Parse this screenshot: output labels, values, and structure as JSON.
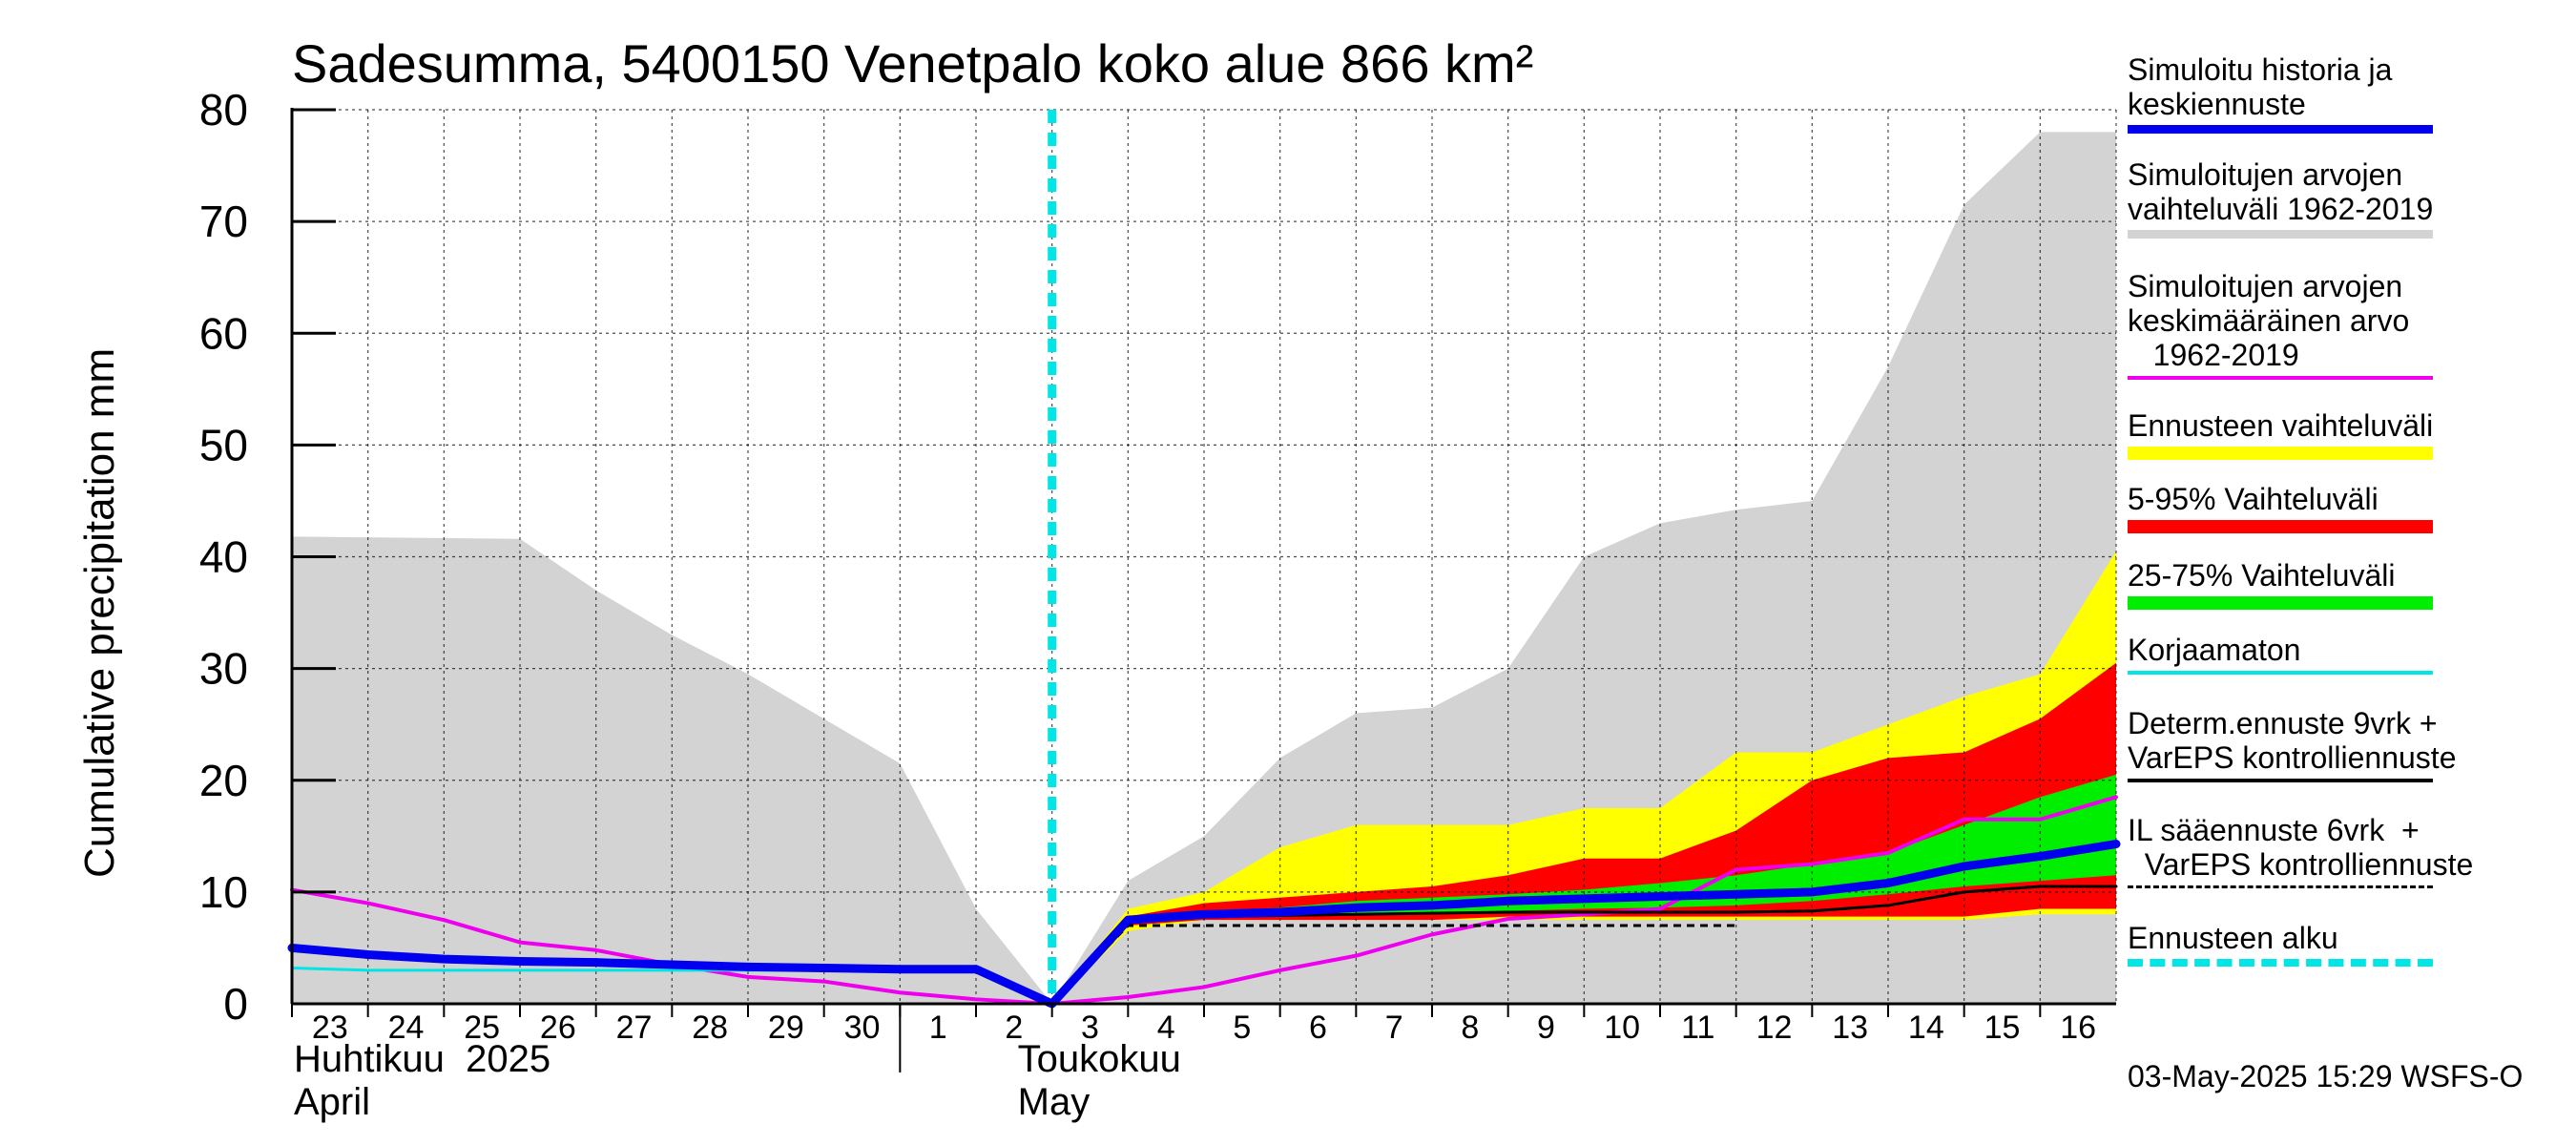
{
  "chart_data": {
    "type": "area",
    "title": "Sadesumma, 5400150 Venetpalo koko alue 866 km²",
    "ylabel": "Cumulative precipitation   mm",
    "ylim": [
      0,
      80
    ],
    "yticks": [
      0,
      10,
      20,
      30,
      40,
      50,
      60,
      70,
      80
    ],
    "x_dates": [
      "2025-04-23",
      "2025-04-24",
      "2025-04-25",
      "2025-04-26",
      "2025-04-27",
      "2025-04-28",
      "2025-04-29",
      "2025-04-30",
      "2025-05-01",
      "2025-05-02",
      "2025-05-03",
      "2025-05-04",
      "2025-05-05",
      "2025-05-06",
      "2025-05-07",
      "2025-05-08",
      "2025-05-09",
      "2025-05-10",
      "2025-05-11",
      "2025-05-12",
      "2025-05-13",
      "2025-05-14",
      "2025-05-15",
      "2025-05-16",
      "2025-05-17"
    ],
    "x_tick_labels": [
      "23",
      "24",
      "25",
      "26",
      "27",
      "28",
      "29",
      "30",
      "1",
      "2",
      "3",
      "4",
      "5",
      "6",
      "7",
      "8",
      "9",
      "10",
      "11",
      "12",
      "13",
      "14",
      "15",
      "16"
    ],
    "month_labels": [
      {
        "text": "Huhtikuu  2025\nApril",
        "date": "2025-04-23"
      },
      {
        "text": "Toukokuu\nMay",
        "date": "2025-05-03"
      }
    ],
    "forecast_start": "2025-05-03",
    "series": [
      {
        "name": "Simuloitujen arvojen vaihteluväli 1962-2019",
        "style": "band",
        "color": "#d3d3d3",
        "x": [
          "2025-04-23",
          "2025-04-26",
          "2025-04-27",
          "2025-04-28",
          "2025-04-29",
          "2025-04-30",
          "2025-05-01",
          "2025-05-02",
          "2025-05-03",
          "2025-05-04",
          "2025-05-05",
          "2025-05-06",
          "2025-05-07",
          "2025-05-08",
          "2025-05-09",
          "2025-05-10",
          "2025-05-11",
          "2025-05-12",
          "2025-05-13",
          "2025-05-14",
          "2025-05-15",
          "2025-05-16",
          "2025-05-17"
        ],
        "upper": [
          41.8,
          41.6,
          37,
          33,
          29.5,
          25.5,
          21.5,
          8.5,
          0,
          11,
          15,
          22,
          26,
          26.5,
          30,
          40,
          43,
          44.2,
          45,
          57,
          71.5,
          78,
          78
        ],
        "lower": [
          0,
          0,
          0,
          0,
          0,
          0,
          0,
          0,
          0,
          0,
          0,
          0,
          0,
          0,
          0,
          0,
          0,
          0,
          0,
          0,
          0,
          0,
          0
        ]
      },
      {
        "name": "Ennusteen vaihteluväli",
        "style": "band",
        "color": "#ffff00",
        "x": [
          "2025-05-03",
          "2025-05-04",
          "2025-05-05",
          "2025-05-06",
          "2025-05-07",
          "2025-05-08",
          "2025-05-09",
          "2025-05-10",
          "2025-05-11",
          "2025-05-12",
          "2025-05-13",
          "2025-05-14",
          "2025-05-15",
          "2025-05-16",
          "2025-05-17"
        ],
        "upper": [
          0,
          8.5,
          10,
          14,
          16,
          16,
          16,
          17.5,
          17.5,
          22.5,
          22.5,
          25,
          27.5,
          29.5,
          40.5
        ],
        "lower": [
          0,
          6.5,
          7.5,
          7.5,
          7.5,
          7.5,
          7.5,
          7.5,
          7.5,
          7.5,
          7.5,
          7.5,
          7.5,
          8,
          8
        ]
      },
      {
        "name": "5-95% Vaihteluväli",
        "style": "band",
        "color": "#ff0000",
        "x": [
          "2025-05-03",
          "2025-05-04",
          "2025-05-05",
          "2025-05-06",
          "2025-05-07",
          "2025-05-08",
          "2025-05-09",
          "2025-05-10",
          "2025-05-11",
          "2025-05-12",
          "2025-05-13",
          "2025-05-14",
          "2025-05-15",
          "2025-05-16",
          "2025-05-17"
        ],
        "upper": [
          0,
          7.8,
          9,
          9.5,
          10,
          10.5,
          11.5,
          13,
          13,
          15.5,
          20,
          22,
          22.5,
          25.5,
          30.5
        ],
        "lower": [
          0,
          7,
          7.5,
          7.5,
          7.5,
          7.5,
          7.8,
          7.8,
          7.8,
          7.8,
          7.8,
          7.8,
          7.8,
          8.5,
          8.5
        ]
      },
      {
        "name": "25-75% Vaihteluväli",
        "style": "band",
        "color": "#00ee00",
        "x": [
          "2025-05-03",
          "2025-05-04",
          "2025-05-05",
          "2025-05-06",
          "2025-05-07",
          "2025-05-08",
          "2025-05-09",
          "2025-05-10",
          "2025-05-11",
          "2025-05-12",
          "2025-05-13",
          "2025-05-14",
          "2025-05-15",
          "2025-05-16",
          "2025-05-17"
        ],
        "upper": [
          0,
          7.5,
          8.3,
          8.6,
          9.2,
          9.5,
          9.8,
          10.2,
          10.8,
          11.5,
          12.5,
          13.5,
          16,
          18.5,
          20.5
        ],
        "lower": [
          0,
          7.3,
          7.8,
          7.9,
          8.1,
          8.2,
          8.3,
          8.5,
          8.6,
          8.8,
          9.2,
          9.8,
          10.5,
          11,
          11.5
        ]
      },
      {
        "name": "Simuloitujen arvojen keskimääräinen arvo 1962-2019",
        "style": "line",
        "color": "#ee00ee",
        "width": 4,
        "x": [
          "2025-04-23",
          "2025-04-24",
          "2025-04-25",
          "2025-04-26",
          "2025-04-27",
          "2025-04-28",
          "2025-04-29",
          "2025-04-30",
          "2025-05-01",
          "2025-05-02",
          "2025-05-03",
          "2025-05-04",
          "2025-05-05",
          "2025-05-06",
          "2025-05-07",
          "2025-05-08",
          "2025-05-09",
          "2025-05-10",
          "2025-05-11",
          "2025-05-12",
          "2025-05-13",
          "2025-05-14",
          "2025-05-15",
          "2025-05-16",
          "2025-05-17"
        ],
        "y": [
          10.2,
          9,
          7.5,
          5.5,
          4.8,
          3.5,
          2.4,
          2,
          1,
          0.4,
          0,
          0.6,
          1.5,
          3,
          4.3,
          6.2,
          7.6,
          8,
          8.5,
          12,
          12.5,
          13.5,
          16.5,
          16.5,
          18.5
        ]
      },
      {
        "name": "Korjaamaton",
        "style": "line",
        "color": "#00e5e5",
        "width": 3,
        "x": [
          "2025-04-23",
          "2025-04-24",
          "2025-04-25",
          "2025-04-26",
          "2025-04-27",
          "2025-04-28",
          "2025-04-29",
          "2025-04-30",
          "2025-05-01",
          "2025-05-02",
          "2025-05-03"
        ],
        "y": [
          3.2,
          3,
          3,
          3,
          3,
          3,
          3,
          3,
          3,
          3,
          0
        ]
      },
      {
        "name": "Determ.ennuste 9vrk + VarEPS kontrolliennuste",
        "style": "line",
        "color": "#000000",
        "width": 3,
        "x": [
          "2025-05-03",
          "2025-05-04",
          "2025-05-05",
          "2025-05-06",
          "2025-05-07",
          "2025-05-08",
          "2025-05-09",
          "2025-05-10",
          "2025-05-11",
          "2025-05-12",
          "2025-05-13",
          "2025-05-14",
          "2025-05-15",
          "2025-05-16",
          "2025-05-17"
        ],
        "y": [
          0,
          7.5,
          7.8,
          7.9,
          8,
          8.1,
          8.2,
          8.2,
          8.2,
          8.2,
          8.3,
          8.8,
          10,
          10.5,
          10.5
        ]
      },
      {
        "name": "IL sääennuste 6vrk + VarEPS kontrolliennuste",
        "style": "dashed",
        "color": "#000000",
        "width": 3,
        "x": [
          "2025-05-03",
          "2025-05-04",
          "2025-05-05",
          "2025-05-06",
          "2025-05-07",
          "2025-05-08",
          "2025-05-09",
          "2025-05-10",
          "2025-05-11",
          "2025-05-12"
        ],
        "y": [
          0,
          7,
          7,
          7,
          7,
          7,
          7,
          7,
          7,
          7
        ]
      },
      {
        "name": "Simuloitu historia ja keskiennuste",
        "style": "line",
        "color": "#0000ee",
        "width": 9,
        "x": [
          "2025-04-23",
          "2025-04-24",
          "2025-04-25",
          "2025-04-26",
          "2025-04-27",
          "2025-04-28",
          "2025-04-29",
          "2025-04-30",
          "2025-05-01",
          "2025-05-02",
          "2025-05-03",
          "2025-05-04",
          "2025-05-05",
          "2025-05-06",
          "2025-05-07",
          "2025-05-08",
          "2025-05-09",
          "2025-05-10",
          "2025-05-11",
          "2025-05-12",
          "2025-05-13",
          "2025-05-14",
          "2025-05-15",
          "2025-05-16",
          "2025-05-17"
        ],
        "y": [
          5,
          4.4,
          4,
          3.8,
          3.7,
          3.5,
          3.3,
          3.2,
          3.1,
          3.1,
          0,
          7.5,
          8,
          8.2,
          8.6,
          8.8,
          9.2,
          9.4,
          9.6,
          9.8,
          10,
          10.8,
          12.3,
          13.2,
          14.3
        ]
      }
    ],
    "legend": [
      {
        "label": "Simuloitu historia ja\nkeskiennuste",
        "swatch": "line",
        "color": "#0000ee"
      },
      {
        "label": "Simuloitujen arvojen\nvaihteluväli 1962-2019",
        "swatch": "line",
        "color": "#d3d3d3"
      },
      {
        "label": "Simuloitujen arvojen\nkeskimääräinen arvo\n   1962-2019",
        "swatch": "thin",
        "color": "#ee00ee"
      },
      {
        "label": "Ennusteen vaihteluväli",
        "swatch": "thick",
        "color": "#ffff00"
      },
      {
        "label": "5-95% Vaihteluväli",
        "swatch": "thick",
        "color": "#ff0000"
      },
      {
        "label": "25-75% Vaihteluväli",
        "swatch": "thick",
        "color": "#00ee00"
      },
      {
        "label": "Korjaamaton",
        "swatch": "thin",
        "color": "#00e5e5"
      },
      {
        "label": "Determ.ennuste 9vrk +\nVarEPS kontrolliennuste",
        "swatch": "thin",
        "color": "#000000"
      },
      {
        "label": "IL sääennuste 6vrk  +\n  VarEPS kontrolliennuste",
        "swatch": "dashed",
        "color": "#000000"
      },
      {
        "label": "Ennusteen alku",
        "swatch": "dotted",
        "color": "#00e5e5"
      }
    ]
  },
  "timestamp": "03-May-2025 15:29 WSFS-O"
}
